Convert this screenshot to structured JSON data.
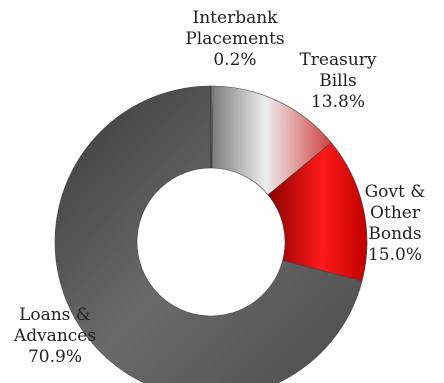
{
  "chart_data": {
    "type": "pie",
    "variant": "donut",
    "title": "",
    "slices": [
      {
        "name": "Interbank Placements",
        "lines": [
          "Interbank",
          "Placements",
          "0.2%"
        ],
        "value": 0.2,
        "color": "#b8b8b8"
      },
      {
        "name": "Treasury Bills",
        "lines": [
          "Treasury",
          "Bills",
          "13.8%"
        ],
        "value": 13.8,
        "color": "#d9d9d9"
      },
      {
        "name": "Govt & Other Bonds",
        "lines": [
          "Govt &",
          "Other",
          "Bonds",
          "15.0%"
        ],
        "value": 15.0,
        "color": "#e00000"
      },
      {
        "name": "Loans & Advances",
        "lines": [
          "Loans &",
          "Advances",
          "70.9%"
        ],
        "value": 70.9,
        "color": "#555555"
      }
    ],
    "start_angle_deg": 0,
    "direction": "clockwise",
    "legend": "none",
    "data_labels": "outside"
  }
}
